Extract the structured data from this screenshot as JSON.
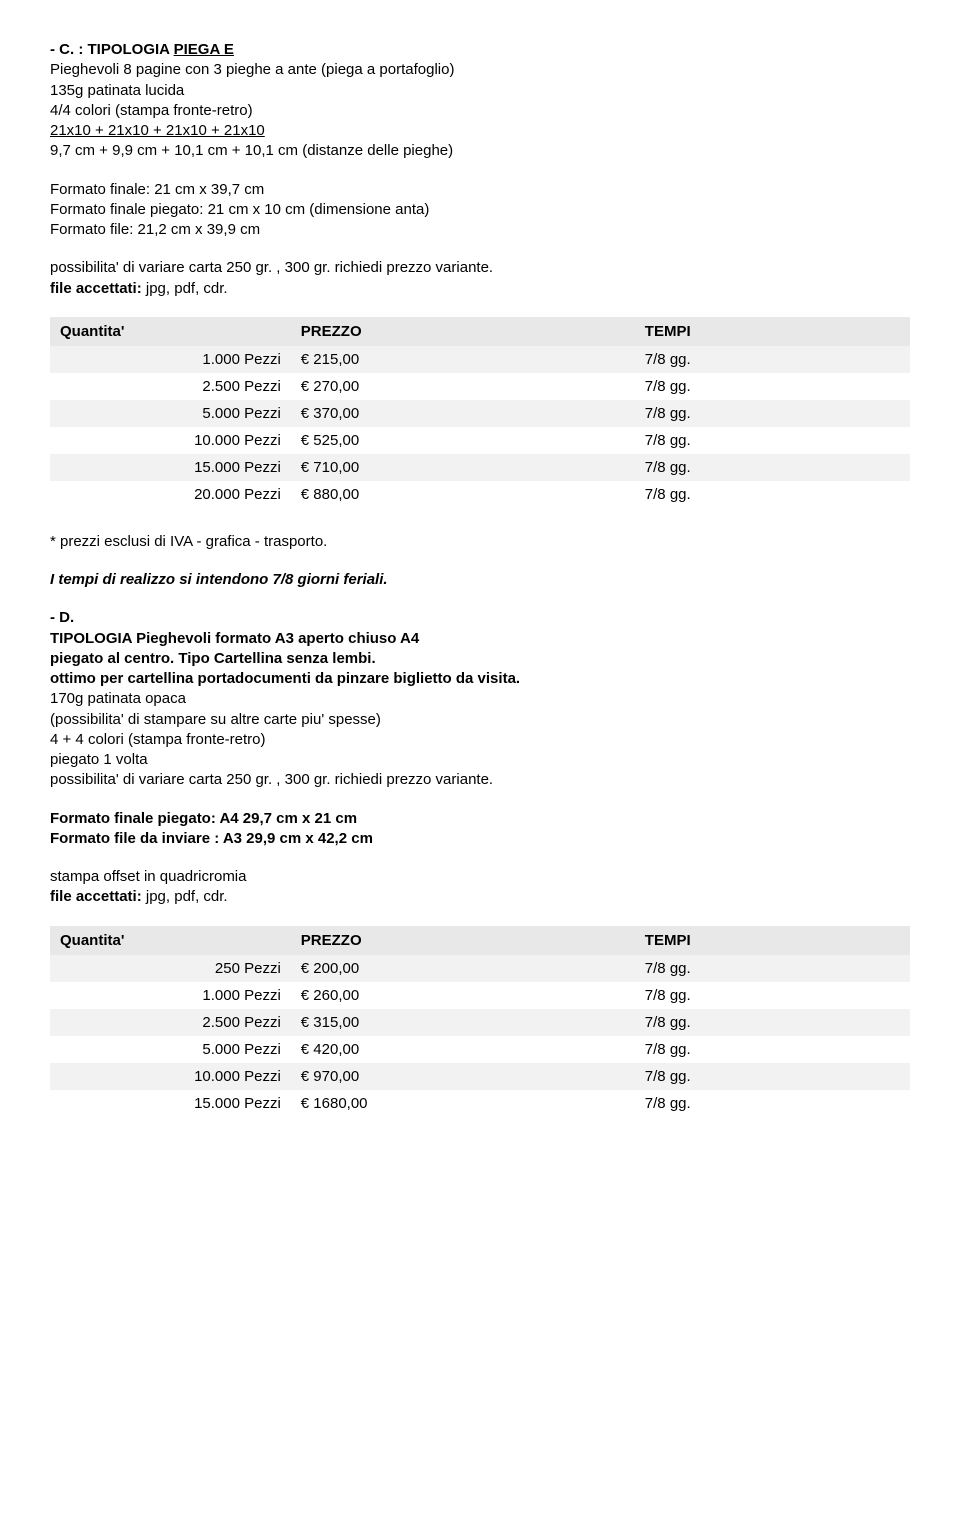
{
  "sectionC": {
    "heading_prefix": "- C. : ",
    "heading_main": "TIPOLOGIA ",
    "heading_under": "PIEGA E",
    "line1": "Pieghevoli 8 pagine con 3 pieghe a ante (piega a portafoglio)",
    "line2": "135g patinata lucida",
    "line3": "4/4 colori (stampa fronte-retro)",
    "line4": "21x10 + 21x10 + 21x10  + 21x10",
    "line5": "9,7 cm + 9,9 cm + 10,1 cm + 10,1 cm (distanze delle pieghe)",
    "line6": "Formato finale: 21 cm x 39,7 cm",
    "line7": "Formato finale piegato: 21 cm x 10 cm (dimensione anta)",
    "line8": "Formato file: 21,2 cm x 39,9 cm",
    "line9": "possibilita' di variare carta 250 gr. , 300 gr. richiedi prezzo variante.",
    "line10_label": "file accettati:",
    "line10_val": " jpg, pdf, cdr."
  },
  "table1": {
    "headers": {
      "qty": "Quantita'",
      "price": "PREZZO",
      "time": "TEMPI"
    },
    "rows": [
      {
        "qty": "1.000 Pezzi",
        "price": "€ 215,00",
        "time": "7/8 gg."
      },
      {
        "qty": "2.500 Pezzi",
        "price": "€ 270,00",
        "time": "7/8 gg."
      },
      {
        "qty": "5.000 Pezzi",
        "price": "€ 370,00",
        "time": "7/8 gg."
      },
      {
        "qty": "10.000 Pezzi",
        "price": "€ 525,00",
        "time": "7/8 gg."
      },
      {
        "qty": "15.000 Pezzi",
        "price": "€ 710,00",
        "time": "7/8 gg."
      },
      {
        "qty": "20.000 Pezzi",
        "price": "€ 880,00",
        "time": "7/8 gg."
      }
    ]
  },
  "note1": "* prezzi esclusi di IVA - grafica - trasporto.",
  "note2": "I tempi di realizzo si intendono 7/8 giorni feriali.",
  "sectionD": {
    "heading": "- D.",
    "line1": "TIPOLOGIA Pieghevoli formato A3 aperto chiuso A4",
    "line2": "piegato al centro. Tipo Cartellina senza lembi.",
    "line3": "ottimo per cartellina portadocumenti da pinzare biglietto da visita.",
    "line4": "170g patinata opaca",
    "line5": "(possibilita' di stampare su altre carte piu' spesse)",
    "line6": "4 + 4 colori (stampa fronte-retro)",
    "line7": "piegato 1 volta",
    "line8": "possibilita' di variare carta 250 gr. , 300 gr. richiedi prezzo variante.",
    "line9": "Formato finale piegato: A4 29,7 cm x 21 cm",
    "line10": "Formato file da inviare : A3 29,9 cm x 42,2 cm",
    "line11": "stampa offset in quadricromia",
    "line12_label": "file accettati:",
    "line12_val": " jpg, pdf, cdr."
  },
  "table2": {
    "headers": {
      "qty": "Quantita'",
      "price": "PREZZO",
      "time": "TEMPI"
    },
    "rows": [
      {
        "qty": "250 Pezzi",
        "price": "€ 200,00",
        "time": "7/8 gg."
      },
      {
        "qty": "1.000 Pezzi",
        "price": "€ 260,00",
        "time": "7/8 gg."
      },
      {
        "qty": "2.500 Pezzi",
        "price": "€ 315,00",
        "time": "7/8 gg."
      },
      {
        "qty": "5.000 Pezzi",
        "price": "€ 420,00",
        "time": "7/8 gg."
      },
      {
        "qty": "10.000 Pezzi",
        "price": "€ 970,00",
        "time": "7/8 gg."
      },
      {
        "qty": "15.000 Pezzi",
        "price": "€ 1680,00",
        "time": "7/8 gg."
      }
    ]
  },
  "style": {
    "header_bg": "#e8e8e8",
    "alt_row_bg": "#f2f2f2",
    "font_family": "Verdana",
    "base_font_size": 15
  }
}
